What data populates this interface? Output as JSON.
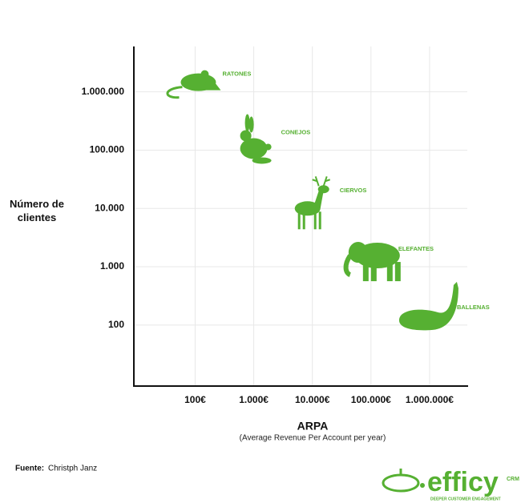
{
  "chart_data": {
    "type": "scatter",
    "x": [
      100,
      1000,
      10000,
      100000,
      1000000
    ],
    "values": [
      1000000,
      100000,
      10000,
      1000,
      100
    ],
    "point_labels": [
      "RATONES",
      "CONEJOS",
      "CIERVOS",
      "ELEFANTES",
      "BALLENAS"
    ],
    "color": "#56b032",
    "xscale": "log",
    "yscale": "log",
    "xlim": [
      9,
      4400000
    ],
    "ylim": [
      9,
      6000000
    ],
    "xticks": [
      {
        "value": 100,
        "label": "100€"
      },
      {
        "value": 1000,
        "label": "1.000€"
      },
      {
        "value": 10000,
        "label": "10.000€"
      },
      {
        "value": 100000,
        "label": "100.000€"
      },
      {
        "value": 1000000,
        "label": "1.000.000€"
      }
    ],
    "yticks": [
      {
        "value": 100,
        "label": "100"
      },
      {
        "value": 1000,
        "label": "1.000"
      },
      {
        "value": 10000,
        "label": "10.000"
      },
      {
        "value": 100000,
        "label": "100.000"
      },
      {
        "value": 1000000,
        "label": "1.000.000"
      }
    ],
    "grid": true,
    "ylabel": "Número de clientes",
    "xlabel": "ARPA",
    "xlabel_note": "(Average Revenue Per Account per year)"
  },
  "source": {
    "label": "Fuente:",
    "text": "Christph Janz"
  },
  "logo": {
    "name": "efficy",
    "suffix": "CRM",
    "tagline": "DEEPER CUSTOMER ENGAGEMENT"
  }
}
